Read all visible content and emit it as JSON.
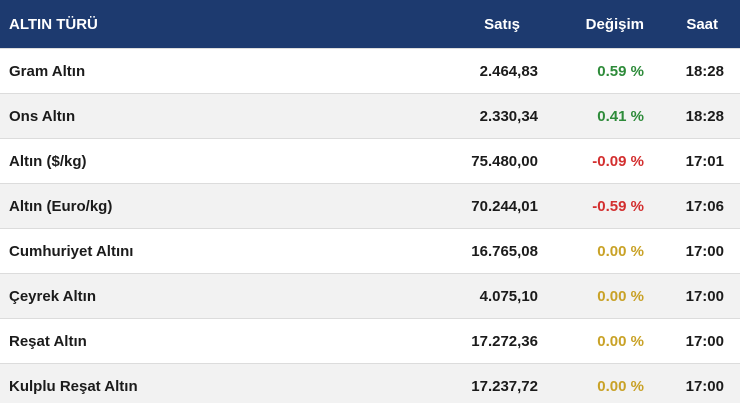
{
  "header": {
    "name": "ALTIN TÜRÜ",
    "sell": "Satış",
    "change": "Değişim",
    "time": "Saat"
  },
  "colors": {
    "header_bg": "#1d3a6f",
    "up": "#2e8b3a",
    "down": "#d32f2f",
    "flat": "#c9a227"
  },
  "rows": [
    {
      "name": "Gram Altın",
      "sell": "2.464,83",
      "change": "0.59 %",
      "trend": "up",
      "time": "18:28"
    },
    {
      "name": "Ons Altın",
      "sell": "2.330,34",
      "change": "0.41 %",
      "trend": "up",
      "time": "18:28"
    },
    {
      "name": "Altın ($/kg)",
      "sell": "75.480,00",
      "change": "-0.09 %",
      "trend": "down",
      "time": "17:01"
    },
    {
      "name": "Altın (Euro/kg)",
      "sell": "70.244,01",
      "change": "-0.59 %",
      "trend": "down",
      "time": "17:06"
    },
    {
      "name": "Cumhuriyet Altını",
      "sell": "16.765,08",
      "change": "0.00 %",
      "trend": "flat",
      "time": "17:00"
    },
    {
      "name": "Çeyrek Altın",
      "sell": "4.075,10",
      "change": "0.00 %",
      "trend": "flat",
      "time": "17:00"
    },
    {
      "name": "Reşat Altın",
      "sell": "17.272,36",
      "change": "0.00 %",
      "trend": "flat",
      "time": "17:00"
    },
    {
      "name": "Kulplu Reşat Altın",
      "sell": "17.237,72",
      "change": "0.00 %",
      "trend": "flat",
      "time": "17:00"
    }
  ]
}
